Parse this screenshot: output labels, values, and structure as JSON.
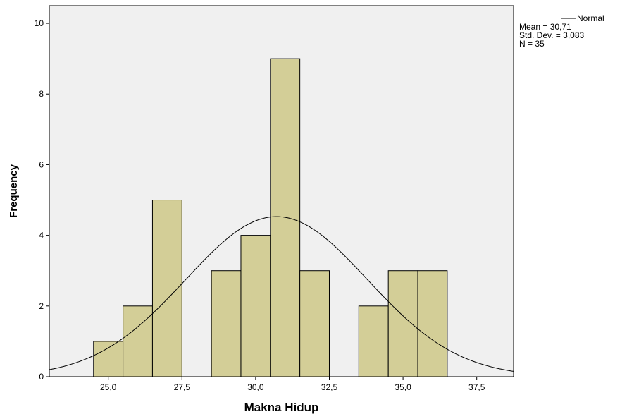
{
  "chart_data": {
    "type": "bar",
    "subtype": "histogram",
    "title": "",
    "xlabel": "Makna Hidup",
    "ylabel": "Frequency",
    "xlim": [
      23.0,
      38.75
    ],
    "ylim": [
      0,
      10.5
    ],
    "grid": false,
    "background_color": "#f0f0f0",
    "bar_color": "#d3ce97",
    "x_ticks": [
      {
        "value": 25.0,
        "label": "25,0"
      },
      {
        "value": 27.5,
        "label": "27,5"
      },
      {
        "value": 30.0,
        "label": "30,0"
      },
      {
        "value": 32.5,
        "label": "32,5"
      },
      {
        "value": 35.0,
        "label": "35,0"
      },
      {
        "value": 37.5,
        "label": "37,5"
      }
    ],
    "y_ticks": [
      {
        "value": 0,
        "label": "0"
      },
      {
        "value": 2,
        "label": "2"
      },
      {
        "value": 4,
        "label": "4"
      },
      {
        "value": 6,
        "label": "6"
      },
      {
        "value": 8,
        "label": "8"
      },
      {
        "value": 10,
        "label": "10"
      }
    ],
    "bins": [
      {
        "center": 25,
        "value": 1
      },
      {
        "center": 26,
        "value": 2
      },
      {
        "center": 27,
        "value": 5
      },
      {
        "center": 29,
        "value": 3
      },
      {
        "center": 30,
        "value": 4
      },
      {
        "center": 31,
        "value": 9
      },
      {
        "center": 32,
        "value": 3
      },
      {
        "center": 34,
        "value": 2
      },
      {
        "center": 35,
        "value": 3
      },
      {
        "center": 36,
        "value": 3
      }
    ],
    "bin_width": 1,
    "normal_curve": {
      "name": "Normal",
      "mean": 30.71,
      "std_dev": 3.083,
      "n": 35
    },
    "legend": {
      "position": "top-right",
      "series_label": "Normal",
      "stats": [
        "Mean = 30,71",
        "Std. Dev. = 3,083",
        "N = 35"
      ]
    }
  }
}
